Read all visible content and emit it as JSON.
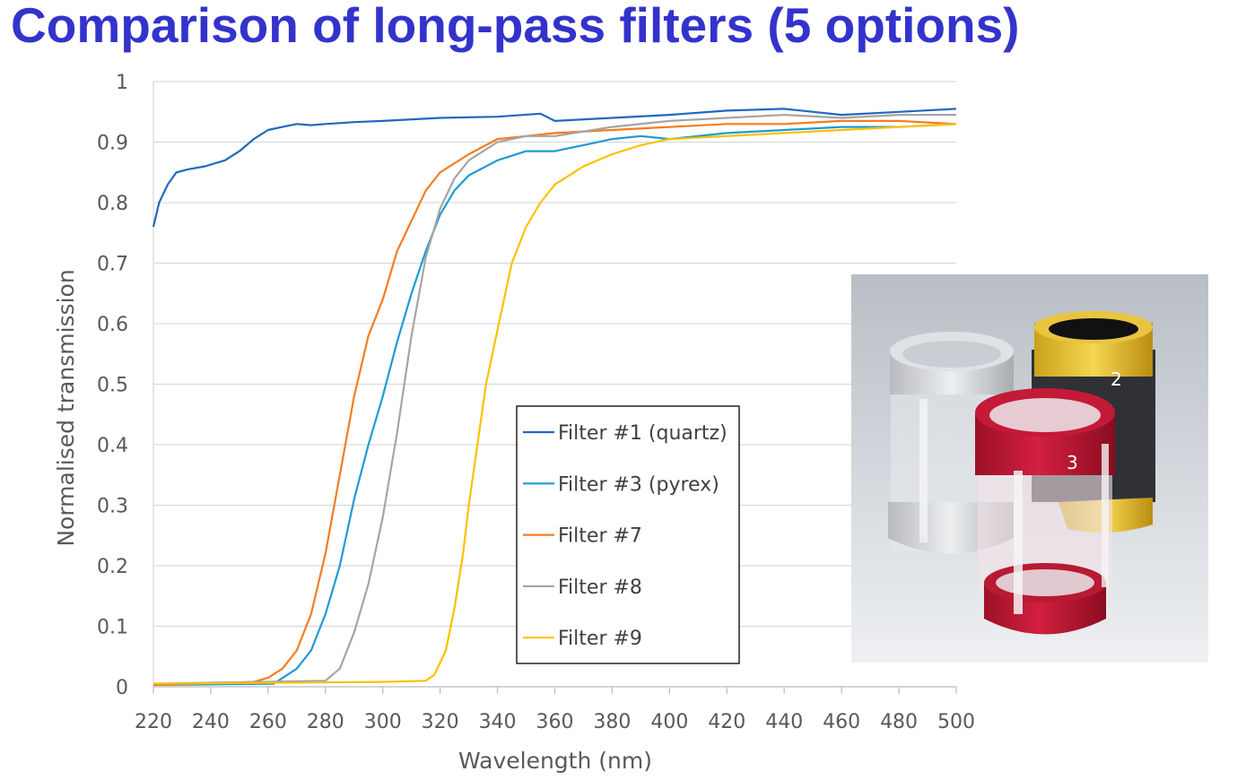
{
  "title": "Comparison of long-pass filters (5 options)",
  "photo": {
    "label_red": "3",
    "label_gold": "2"
  },
  "chart_data": {
    "type": "line",
    "title": "",
    "xlabel": "Wavelength (nm)",
    "ylabel": "Normalised transmission",
    "xlim": [
      220,
      500
    ],
    "ylim": [
      0,
      1
    ],
    "xticks": [
      220,
      240,
      260,
      280,
      300,
      320,
      340,
      360,
      380,
      400,
      420,
      440,
      460,
      480,
      500
    ],
    "yticks": [
      "0",
      "0.1",
      "0.2",
      "0.3",
      "0.4",
      "0.5",
      "0.6",
      "0.7",
      "0.8",
      "0.9",
      "1"
    ],
    "grid": "horizontal",
    "legend": "center-right boxed",
    "series": [
      {
        "name": "Filter #1 (quartz)",
        "color": "#2268c0",
        "x": [
          220,
          222,
          225,
          228,
          232,
          238,
          245,
          250,
          255,
          260,
          265,
          270,
          275,
          280,
          290,
          300,
          320,
          340,
          355,
          360,
          380,
          400,
          420,
          440,
          460,
          480,
          500
        ],
        "y": [
          0.76,
          0.8,
          0.83,
          0.85,
          0.855,
          0.86,
          0.87,
          0.885,
          0.905,
          0.92,
          0.925,
          0.93,
          0.928,
          0.93,
          0.933,
          0.935,
          0.94,
          0.942,
          0.947,
          0.935,
          0.94,
          0.945,
          0.952,
          0.955,
          0.945,
          0.95,
          0.955
        ]
      },
      {
        "name": "Filter #3 (pyrex)",
        "color": "#1e9ad6",
        "x": [
          220,
          262,
          270,
          275,
          280,
          285,
          290,
          295,
          300,
          305,
          310,
          315,
          320,
          325,
          330,
          340,
          350,
          360,
          370,
          380,
          390,
          400,
          420,
          440,
          460,
          480,
          500
        ],
        "y": [
          0.003,
          0.005,
          0.03,
          0.06,
          0.12,
          0.2,
          0.31,
          0.4,
          0.48,
          0.57,
          0.65,
          0.72,
          0.78,
          0.82,
          0.845,
          0.87,
          0.885,
          0.885,
          0.895,
          0.905,
          0.91,
          0.905,
          0.915,
          0.92,
          0.925,
          0.925,
          0.93
        ]
      },
      {
        "name": "Filter #7",
        "color": "#f47c20",
        "x": [
          220,
          255,
          260,
          265,
          270,
          275,
          280,
          285,
          290,
          295,
          300,
          305,
          310,
          315,
          320,
          330,
          340,
          350,
          360,
          380,
          400,
          420,
          440,
          460,
          480,
          500
        ],
        "y": [
          0.003,
          0.008,
          0.015,
          0.03,
          0.06,
          0.12,
          0.22,
          0.35,
          0.48,
          0.58,
          0.64,
          0.72,
          0.77,
          0.82,
          0.85,
          0.88,
          0.905,
          0.91,
          0.915,
          0.92,
          0.925,
          0.93,
          0.93,
          0.935,
          0.935,
          0.93
        ]
      },
      {
        "name": "Filter #8",
        "color": "#a5a5a5",
        "x": [
          220,
          280,
          285,
          290,
          295,
          300,
          305,
          310,
          315,
          320,
          325,
          330,
          340,
          350,
          360,
          380,
          400,
          420,
          440,
          460,
          480,
          500
        ],
        "y": [
          0.005,
          0.01,
          0.03,
          0.09,
          0.17,
          0.28,
          0.42,
          0.58,
          0.71,
          0.79,
          0.84,
          0.87,
          0.9,
          0.91,
          0.91,
          0.925,
          0.935,
          0.94,
          0.945,
          0.94,
          0.945,
          0.945
        ]
      },
      {
        "name": "Filter #9",
        "color": "#ffc000",
        "x": [
          220,
          300,
          315,
          318,
          322,
          325,
          328,
          330,
          333,
          336,
          340,
          345,
          350,
          355,
          360,
          370,
          380,
          390,
          400,
          420,
          440,
          460,
          480,
          500
        ],
        "y": [
          0.005,
          0.008,
          0.01,
          0.02,
          0.06,
          0.13,
          0.22,
          0.3,
          0.4,
          0.5,
          0.59,
          0.7,
          0.76,
          0.8,
          0.83,
          0.86,
          0.88,
          0.895,
          0.905,
          0.91,
          0.915,
          0.92,
          0.925,
          0.93
        ]
      }
    ]
  }
}
